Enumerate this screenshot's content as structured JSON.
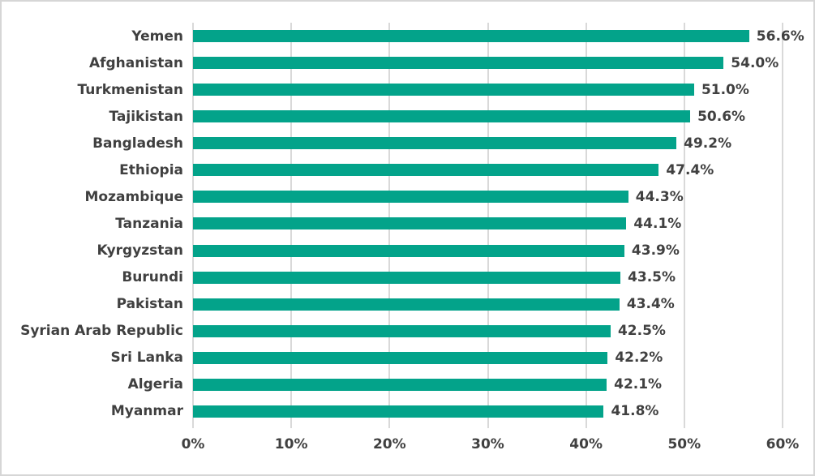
{
  "chart_data": {
    "type": "bar",
    "orientation": "horizontal",
    "title": "",
    "categories": [
      "Yemen",
      "Afghanistan",
      "Turkmenistan",
      "Tajikistan",
      "Bangladesh",
      "Ethiopia",
      "Mozambique",
      "Tanzania",
      "Kyrgyzstan",
      "Burundi",
      "Pakistan",
      "Syrian Arab Republic",
      "Sri Lanka",
      "Algeria",
      "Myanmar"
    ],
    "values": [
      56.6,
      54.0,
      51.0,
      50.6,
      49.2,
      47.4,
      44.3,
      44.1,
      43.9,
      43.5,
      43.4,
      42.5,
      42.2,
      42.1,
      41.8
    ],
    "value_labels": [
      "56.6%",
      "54.0%",
      "51.0%",
      "50.6%",
      "49.2%",
      "47.4%",
      "44.3%",
      "44.1%",
      "43.9%",
      "43.5%",
      "43.4%",
      "42.5%",
      "42.2%",
      "42.1%",
      "41.8%"
    ],
    "x_tick_labels": [
      "0%",
      "10%",
      "20%",
      "30%",
      "40%",
      "50%",
      "60%"
    ],
    "xlim": [
      0,
      60
    ],
    "xlabel": "",
    "ylabel": "",
    "grid": true,
    "legend": false,
    "bar_color": "#03a38a",
    "gridline_color": "#d9d9d9",
    "text_color": "#404040",
    "frame_border_color": "#d6d6d6",
    "background_color": "#ffffff"
  }
}
